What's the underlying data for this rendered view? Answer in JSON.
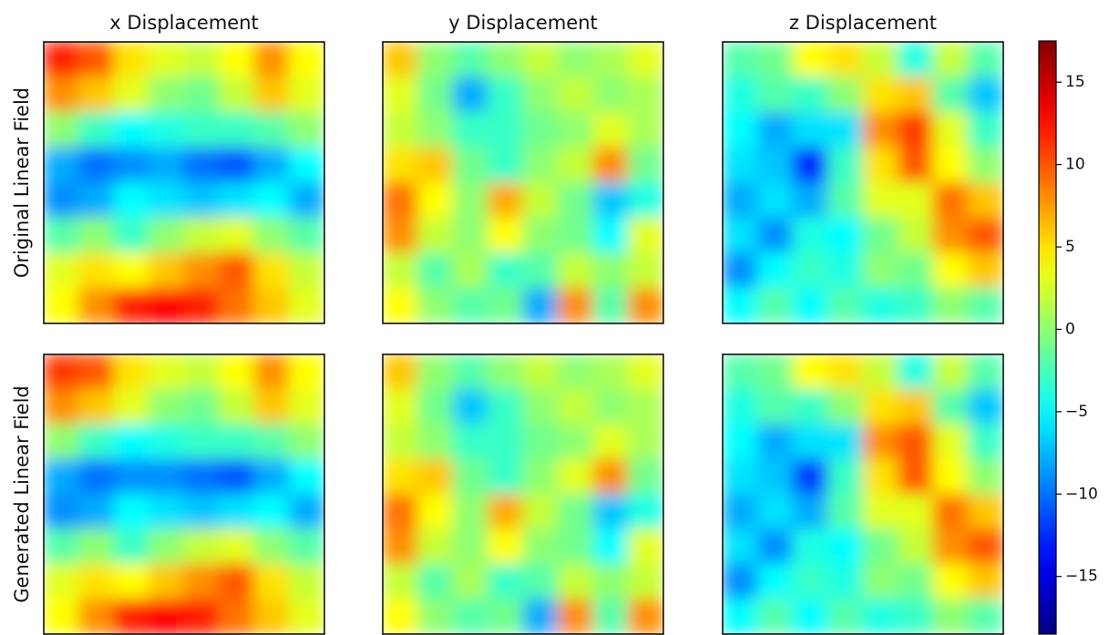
{
  "chart_data": {
    "type": "heatmap",
    "colormap": "jet",
    "column_titles": [
      "x Displacement",
      "y Displacement",
      "z Displacement"
    ],
    "row_titles": [
      "Original Linear Field",
      "Generated Linear Field"
    ],
    "zlim": [
      -18.5,
      17.5
    ],
    "colorbar_ticks": [
      {
        "value": -15,
        "label": "−15"
      },
      {
        "value": -10,
        "label": "−10"
      },
      {
        "value": -5,
        "label": "−5"
      },
      0,
      5,
      10,
      15
    ],
    "panels": [
      {
        "values": [
          [
            12,
            10,
            5,
            3,
            2,
            4,
            8,
            4
          ],
          [
            8,
            6,
            3,
            0,
            -1,
            2,
            6,
            3
          ],
          [
            0,
            -3,
            -5,
            -4,
            -3,
            -3,
            -2,
            0
          ],
          [
            -8,
            -10,
            -9,
            -8,
            -10,
            -11,
            -8,
            -5
          ],
          [
            -9,
            -8,
            -5,
            -6,
            -7,
            -6,
            -5,
            -8
          ],
          [
            -2,
            0,
            -3,
            0,
            2,
            3,
            0,
            -2
          ],
          [
            3,
            5,
            4,
            6,
            8,
            10,
            5,
            2
          ],
          [
            4,
            8,
            12,
            13,
            12,
            9,
            6,
            3
          ]
        ]
      },
      {
        "values": [
          [
            6,
            0,
            -2,
            0,
            2,
            0,
            1,
            3
          ],
          [
            3,
            -1,
            -8,
            -3,
            0,
            2,
            0,
            1
          ],
          [
            2,
            0,
            -3,
            -3,
            -1,
            0,
            3,
            1
          ],
          [
            5,
            6,
            -1,
            -3,
            0,
            2,
            8,
            -1
          ],
          [
            9,
            4,
            0,
            7,
            2,
            -1,
            -7,
            -4
          ],
          [
            8,
            2,
            0,
            4,
            0,
            -1,
            -5,
            3
          ],
          [
            2,
            -2,
            1,
            -3,
            -2,
            2,
            0,
            2
          ],
          [
            4,
            0,
            -2,
            -1,
            -8,
            8,
            -2,
            8
          ]
        ]
      },
      {
        "values": [
          [
            -2,
            -1,
            4,
            5,
            2,
            -4,
            2,
            -2
          ],
          [
            -4,
            -2,
            -3,
            0,
            5,
            6,
            -2,
            -7
          ],
          [
            -5,
            -8,
            -6,
            -6,
            8,
            11,
            3,
            -3
          ],
          [
            -6,
            -7,
            -13,
            -3,
            5,
            10,
            4,
            0
          ],
          [
            -8,
            -6,
            -8,
            -2,
            3,
            3,
            9,
            6
          ],
          [
            -6,
            -9,
            -4,
            -5,
            -1,
            2,
            8,
            10
          ],
          [
            -9,
            -5,
            -3,
            -4,
            0,
            -1,
            4,
            6
          ],
          [
            -5,
            -2,
            -5,
            -2,
            -4,
            -3,
            0,
            -2
          ]
        ]
      },
      {
        "values": [
          [
            11,
            10,
            5,
            3,
            2,
            4,
            8,
            4
          ],
          [
            8,
            6,
            3,
            0,
            -1,
            2,
            6,
            3
          ],
          [
            0,
            -3,
            -5,
            -4,
            -3,
            -3,
            -2,
            0
          ],
          [
            -8,
            -10,
            -9,
            -9,
            -10,
            -11,
            -8,
            -5
          ],
          [
            -9,
            -8,
            -5,
            -6,
            -7,
            -6,
            -5,
            -8
          ],
          [
            -2,
            0,
            -3,
            0,
            2,
            3,
            0,
            -2
          ],
          [
            3,
            5,
            4,
            6,
            8,
            10,
            5,
            2
          ],
          [
            4,
            8,
            12,
            13,
            12,
            9,
            6,
            3
          ]
        ]
      },
      {
        "values": [
          [
            6,
            0,
            -2,
            0,
            2,
            0,
            1,
            3
          ],
          [
            3,
            -1,
            -7,
            -3,
            0,
            2,
            0,
            1
          ],
          [
            2,
            0,
            -3,
            -3,
            -1,
            0,
            3,
            1
          ],
          [
            5,
            6,
            -1,
            -3,
            0,
            3,
            8,
            -1
          ],
          [
            9,
            4,
            0,
            7,
            2,
            -1,
            -7,
            -4
          ],
          [
            8,
            2,
            0,
            4,
            0,
            -1,
            -5,
            3
          ],
          [
            2,
            -2,
            1,
            -3,
            -2,
            2,
            0,
            2
          ],
          [
            4,
            0,
            -2,
            -1,
            -8,
            8,
            -2,
            8
          ]
        ]
      },
      {
        "values": [
          [
            -2,
            -1,
            4,
            5,
            2,
            -4,
            2,
            -2
          ],
          [
            -4,
            -2,
            -3,
            0,
            5,
            6,
            -2,
            -7
          ],
          [
            -5,
            -8,
            -6,
            -6,
            8,
            10,
            3,
            -3
          ],
          [
            -6,
            -7,
            -12,
            -3,
            5,
            10,
            4,
            0
          ],
          [
            -8,
            -6,
            -8,
            -2,
            3,
            3,
            9,
            6
          ],
          [
            -6,
            -9,
            -4,
            -5,
            -1,
            2,
            8,
            10
          ],
          [
            -9,
            -5,
            -3,
            -4,
            0,
            -1,
            4,
            6
          ],
          [
            -5,
            -2,
            -5,
            -2,
            -4,
            -3,
            0,
            -2
          ]
        ]
      }
    ]
  }
}
